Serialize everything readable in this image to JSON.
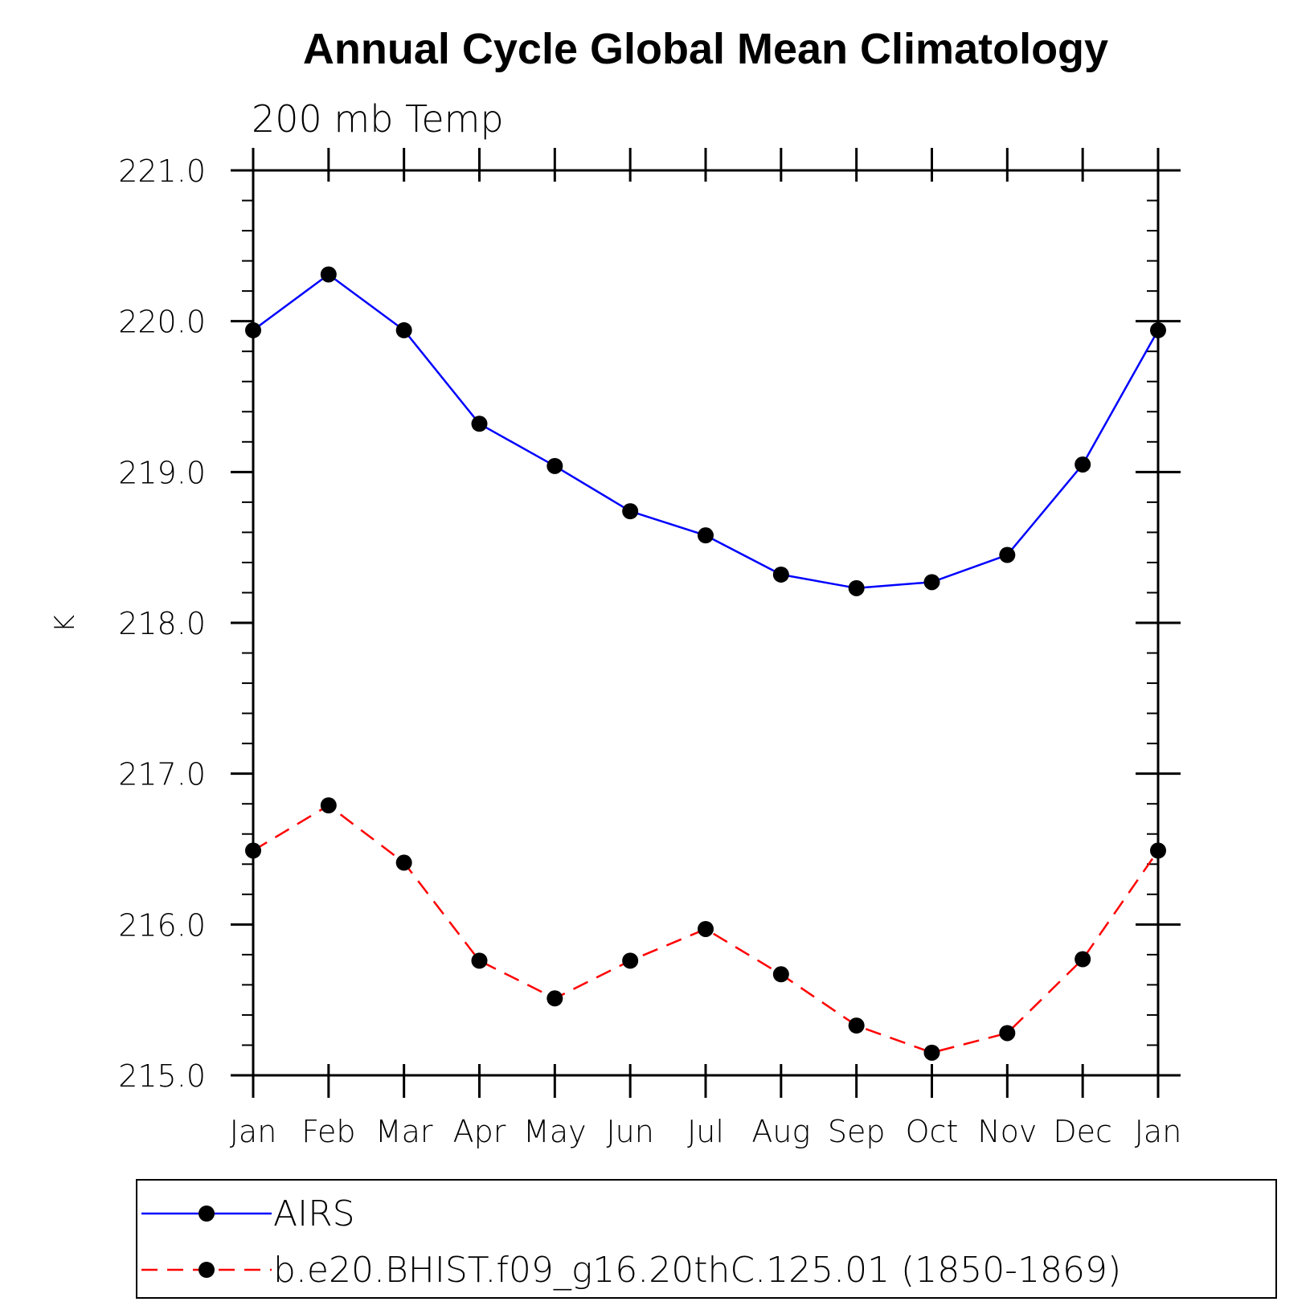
{
  "chart_data": {
    "type": "line",
    "title": "Annual Cycle Global Mean Climatology",
    "subtitle": "200 mb Temp",
    "xlabel": "",
    "ylabel": "K",
    "categories": [
      "Jan",
      "Feb",
      "Mar",
      "Apr",
      "May",
      "Jun",
      "Jul",
      "Aug",
      "Sep",
      "Oct",
      "Nov",
      "Dec",
      "Jan"
    ],
    "ylim": [
      215.0,
      221.0
    ],
    "yticks": [
      "215.0",
      "216.0",
      "217.0",
      "218.0",
      "219.0",
      "220.0",
      "221.0"
    ],
    "grid": false,
    "legend_position": "bottom",
    "series": [
      {
        "name": "AIRS",
        "color": "#0000ff",
        "line_style": "solid",
        "marker": "filled-circle",
        "values": [
          219.94,
          220.31,
          219.94,
          219.32,
          219.04,
          218.74,
          218.58,
          218.32,
          218.23,
          218.27,
          218.45,
          219.05,
          219.94
        ]
      },
      {
        "name": "b.e20.BHIST.f09_g16.20thC.125.01 (1850-1869)",
        "color": "#ff0000",
        "line_style": "dashed",
        "marker": "filled-circle",
        "values": [
          216.49,
          216.79,
          216.41,
          215.76,
          215.51,
          215.76,
          215.97,
          215.67,
          215.33,
          215.15,
          215.28,
          215.77,
          216.49
        ]
      }
    ]
  }
}
